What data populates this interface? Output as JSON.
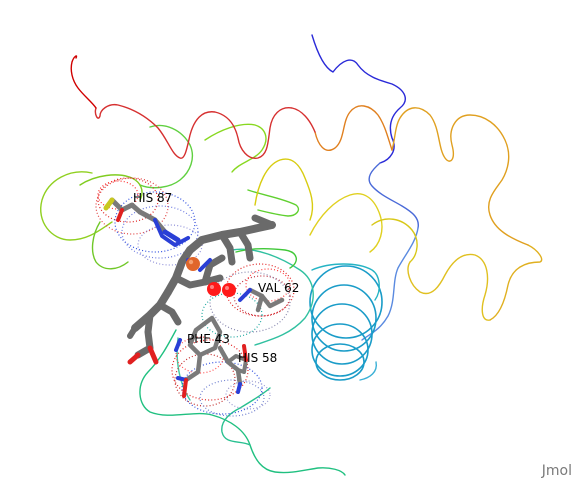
{
  "viewer": {
    "app": "Jmol",
    "watermark": "Jmol",
    "background_color": "#ffffff"
  },
  "labels": {
    "his87": "HIS 87",
    "val62": "VAL 62",
    "phe43": "PHE 43",
    "his58": "HIS 58"
  },
  "colors": {
    "label_text": "#000000",
    "heme_carbon": "#777777",
    "oxygen": "#ff1a1a",
    "nitrogen": "#2a3fd6",
    "iron": "#e0662b",
    "watermark": "#7a7a7a",
    "trace_n_terminus": "#1a1ad6",
    "trace_c_terminus": "#d60000"
  },
  "icons": {
    "iron_atom": "iron-atom-sphere",
    "oxygen_atom": "oxygen-atom-sphere"
  }
}
